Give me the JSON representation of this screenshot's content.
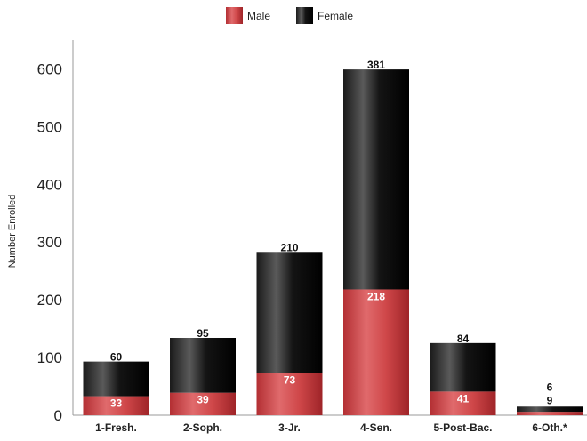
{
  "chart_data": {
    "type": "bar",
    "stacked": true,
    "categories": [
      "1-Fresh.",
      "2-Soph.",
      "3-Jr.",
      "4-Sen.",
      "5-Post-Bac.",
      "6-Oth.*"
    ],
    "series": [
      {
        "name": "Male",
        "color": "#c0393b",
        "values": [
          33,
          39,
          73,
          218,
          41,
          6
        ]
      },
      {
        "name": "Female",
        "color": "#111111",
        "values": [
          60,
          95,
          210,
          381,
          84,
          9
        ]
      }
    ],
    "ylabel": "Number Enrolled",
    "xlabel": "",
    "ylim": [
      0,
      650
    ],
    "yticks": [
      0,
      100,
      200,
      300,
      400,
      500,
      600
    ],
    "grid": false,
    "legend_position": "top-center"
  }
}
